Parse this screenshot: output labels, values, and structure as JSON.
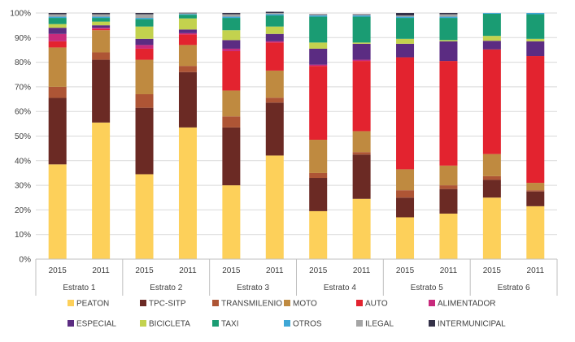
{
  "chart_data": {
    "type": "bar",
    "stacked": true,
    "ylim": [
      0,
      100
    ],
    "y_ticks": [
      "0%",
      "10%",
      "20%",
      "30%",
      "40%",
      "50%",
      "60%",
      "70%",
      "80%",
      "90%",
      "100%"
    ],
    "grid": true,
    "legend_placement": "bottom",
    "groups": [
      "Estrato 1",
      "Estrato 2",
      "Estrato 3",
      "Estrato 4",
      "Estrato 5",
      "Estrato 6"
    ],
    "categories": [
      "2015",
      "2011",
      "2015",
      "2011",
      "2015",
      "2011",
      "2015",
      "2011",
      "2015",
      "2011",
      "2015",
      "2011"
    ],
    "series": [
      {
        "name": "PEATON",
        "color": "#FDD05A",
        "values": [
          38.5,
          55.5,
          34.5,
          53.5,
          30,
          42.1,
          19.5,
          24.5,
          17,
          18.5,
          25,
          21.5
        ]
      },
      {
        "name": "TPC-SITP",
        "color": "#6B2A24",
        "values": [
          27,
          25.5,
          27,
          22.5,
          23.5,
          21.5,
          13.5,
          18,
          8,
          10,
          7.2,
          6
        ]
      },
      {
        "name": "TRANSMILENIO",
        "color": "#AE5535",
        "values": [
          4.5,
          3,
          5.5,
          2.5,
          4.5,
          2,
          2,
          1,
          3,
          1.5,
          1.5,
          0.5
        ]
      },
      {
        "name": "MOTO",
        "color": "#BF8A40",
        "values": [
          16,
          9,
          14,
          8.5,
          10.5,
          11,
          13.5,
          8.5,
          8.5,
          8,
          9,
          3
        ]
      },
      {
        "name": "AUTO",
        "color": "#E3232F",
        "values": [
          2.5,
          0.5,
          4.5,
          4.3,
          16,
          11.4,
          30,
          28.5,
          45.5,
          42.5,
          42.5,
          51.5
        ]
      },
      {
        "name": "ALIMENTADOR",
        "color": "#C82A7C",
        "values": [
          3,
          0.5,
          1.5,
          0.5,
          1,
          0.5,
          0.5,
          0.5,
          0,
          0,
          0,
          0
        ]
      },
      {
        "name": "ESPECIAL",
        "color": "#5B2C82",
        "values": [
          2.5,
          1,
          2.5,
          1.5,
          3.5,
          3,
          6.5,
          6.5,
          5.5,
          8,
          3.5,
          6
        ]
      },
      {
        "name": "BICICLETA",
        "color": "#C3D24E",
        "values": [
          1.5,
          1.5,
          5,
          4.5,
          4,
          3,
          2.5,
          0.5,
          2,
          0.5,
          2,
          1
        ]
      },
      {
        "name": "TAXI",
        "color": "#1A9C73",
        "values": [
          2.5,
          1.5,
          3,
          1.5,
          5,
          4.5,
          10.5,
          10.5,
          8.5,
          9,
          9,
          10
        ]
      },
      {
        "name": "OTROS",
        "color": "#3FA7D6",
        "values": [
          0.5,
          0.5,
          0.5,
          0.3,
          0.5,
          0.5,
          0.5,
          0.5,
          0.5,
          0.5,
          0.3,
          0.5
        ]
      },
      {
        "name": "ILEGAL",
        "color": "#A5A5A5",
        "values": [
          1,
          1,
          1.5,
          0.3,
          1,
          0.5,
          0.3,
          0.3,
          0.5,
          1,
          0,
          0
        ]
      },
      {
        "name": "INTERMUNICIPAL",
        "color": "#343148",
        "values": [
          0.5,
          0.5,
          0.5,
          0.2,
          0.5,
          0.5,
          0.2,
          0.2,
          1,
          0.5,
          0,
          0
        ]
      }
    ]
  }
}
